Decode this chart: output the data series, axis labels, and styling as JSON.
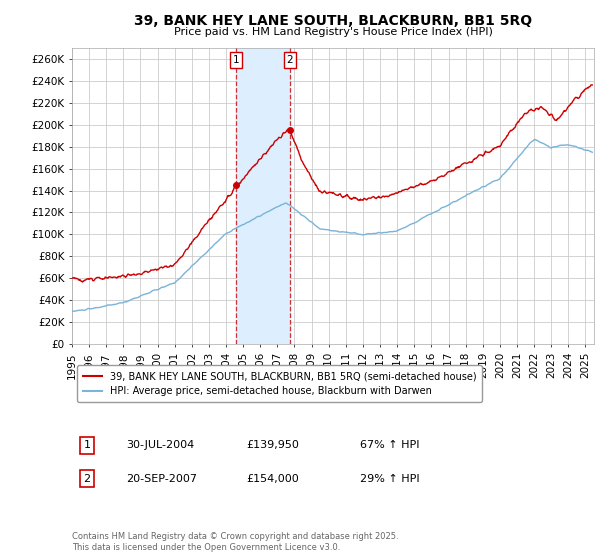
{
  "title": "39, BANK HEY LANE SOUTH, BLACKBURN, BB1 5RQ",
  "subtitle": "Price paid vs. HM Land Registry's House Price Index (HPI)",
  "ylabel_ticks": [
    "£0",
    "£20K",
    "£40K",
    "£60K",
    "£80K",
    "£100K",
    "£120K",
    "£140K",
    "£160K",
    "£180K",
    "£200K",
    "£220K",
    "£240K",
    "£260K"
  ],
  "ytick_values": [
    0,
    20000,
    40000,
    60000,
    80000,
    100000,
    120000,
    140000,
    160000,
    180000,
    200000,
    220000,
    240000,
    260000
  ],
  "ylim": [
    0,
    270000
  ],
  "xlim_start": 1995.0,
  "xlim_end": 2025.5,
  "sale1_date": 2004.57,
  "sale1_price": 139950,
  "sale1_label": "1",
  "sale1_date_str": "30-JUL-2004",
  "sale1_price_str": "£139,950",
  "sale1_hpi_str": "67% ↑ HPI",
  "sale2_date": 2007.72,
  "sale2_price": 154000,
  "sale2_label": "2",
  "sale2_date_str": "20-SEP-2007",
  "sale2_price_str": "£154,000",
  "sale2_hpi_str": "29% ↑ HPI",
  "hpi_color": "#7ab4d8",
  "price_color": "#cc0000",
  "shading_color": "#ddeeff",
  "grid_color": "#cccccc",
  "background_color": "#ffffff",
  "legend_label_price": "39, BANK HEY LANE SOUTH, BLACKBURN, BB1 5RQ (semi-detached house)",
  "legend_label_hpi": "HPI: Average price, semi-detached house, Blackburn with Darwen",
  "footnote": "Contains HM Land Registry data © Crown copyright and database right 2025.\nThis data is licensed under the Open Government Licence v3.0.",
  "xtick_years": [
    1995,
    1996,
    1997,
    1998,
    1999,
    2000,
    2001,
    2002,
    2003,
    2004,
    2005,
    2006,
    2007,
    2008,
    2009,
    2010,
    2011,
    2012,
    2013,
    2014,
    2015,
    2016,
    2017,
    2018,
    2019,
    2020,
    2021,
    2022,
    2023,
    2024,
    2025
  ]
}
